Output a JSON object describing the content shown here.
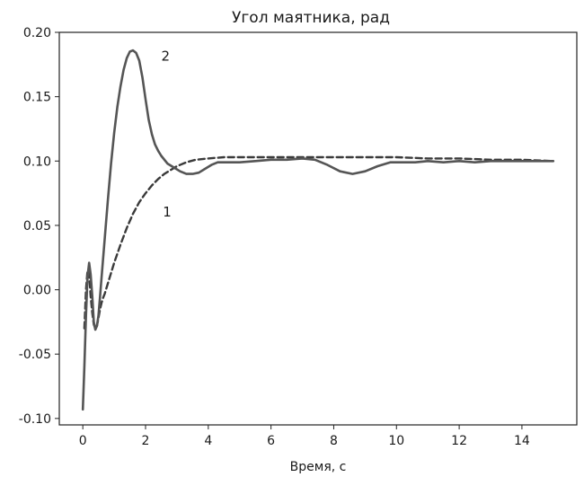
{
  "chart_data": {
    "type": "line",
    "title": "Угол маятника, рад",
    "xlabel": "Время, с",
    "ylabel": "",
    "xlim": [
      -0.75,
      15.75
    ],
    "ylim": [
      -0.105,
      0.2
    ],
    "xticks": [
      0,
      2,
      4,
      6,
      8,
      10,
      12,
      14
    ],
    "yticks": [
      -0.1,
      -0.05,
      0.0,
      0.05,
      0.1,
      0.15,
      0.2
    ],
    "xtick_labels": [
      "0",
      "2",
      "4",
      "6",
      "8",
      "10",
      "12",
      "14"
    ],
    "ytick_labels": [
      "-0.10",
      "-0.05",
      "0.00",
      "0.05",
      "0.10",
      "0.15",
      "0.20"
    ],
    "grid": false,
    "series": [
      {
        "name": "1",
        "style": "dashed",
        "color": "#3a3a3a",
        "x": [
          0.05,
          0.1,
          0.15,
          0.2,
          0.25,
          0.3,
          0.35,
          0.4,
          0.45,
          0.5,
          0.55,
          0.6,
          0.65,
          0.7,
          0.8,
          0.9,
          1.0,
          1.2,
          1.4,
          1.6,
          1.8,
          2.0,
          2.2,
          2.4,
          2.6,
          2.8,
          3.0,
          3.3,
          3.6,
          4.0,
          4.5,
          5.0,
          6.0,
          7.0,
          8.0,
          9.0,
          10.0,
          11.0,
          12.0,
          13.0,
          14.0,
          15.0
        ],
        "y": [
          -0.03,
          0.0,
          0.015,
          0.012,
          -0.005,
          -0.018,
          -0.027,
          -0.03,
          -0.028,
          -0.022,
          -0.015,
          -0.01,
          -0.006,
          -0.003,
          0.005,
          0.013,
          0.021,
          0.035,
          0.048,
          0.059,
          0.068,
          0.075,
          0.081,
          0.086,
          0.09,
          0.093,
          0.096,
          0.099,
          0.101,
          0.102,
          0.103,
          0.103,
          0.103,
          0.103,
          0.103,
          0.103,
          0.103,
          0.102,
          0.102,
          0.101,
          0.101,
          0.1
        ]
      },
      {
        "name": "2",
        "style": "solid",
        "color": "#555555",
        "x": [
          0.0,
          0.05,
          0.1,
          0.15,
          0.2,
          0.25,
          0.3,
          0.35,
          0.4,
          0.45,
          0.5,
          0.55,
          0.6,
          0.7,
          0.8,
          0.9,
          1.0,
          1.1,
          1.2,
          1.3,
          1.4,
          1.5,
          1.6,
          1.7,
          1.8,
          1.9,
          2.0,
          2.1,
          2.2,
          2.3,
          2.4,
          2.5,
          2.7,
          2.9,
          3.1,
          3.3,
          3.5,
          3.7,
          3.9,
          4.1,
          4.3,
          4.6,
          5.0,
          5.5,
          6.0,
          6.5,
          7.0,
          7.4,
          7.8,
          8.2,
          8.6,
          9.0,
          9.4,
          9.8,
          10.2,
          10.6,
          11.0,
          11.5,
          12.0,
          12.5,
          13.0,
          13.5,
          14.0,
          14.5,
          15.0
        ],
        "y": [
          -0.093,
          -0.06,
          -0.02,
          0.01,
          0.021,
          0.012,
          -0.005,
          -0.025,
          -0.031,
          -0.028,
          -0.02,
          -0.005,
          0.01,
          0.04,
          0.07,
          0.098,
          0.122,
          0.142,
          0.158,
          0.171,
          0.18,
          0.185,
          0.186,
          0.184,
          0.178,
          0.165,
          0.148,
          0.132,
          0.121,
          0.113,
          0.108,
          0.104,
          0.098,
          0.095,
          0.092,
          0.09,
          0.09,
          0.091,
          0.094,
          0.097,
          0.099,
          0.099,
          0.099,
          0.1,
          0.101,
          0.101,
          0.102,
          0.101,
          0.097,
          0.092,
          0.09,
          0.092,
          0.096,
          0.099,
          0.099,
          0.099,
          0.1,
          0.099,
          0.1,
          0.099,
          0.1,
          0.1,
          0.1,
          0.1,
          0.1
        ]
      }
    ],
    "annotations": [
      {
        "text": "2",
        "x": 2.5,
        "y": 0.178
      },
      {
        "text": "1",
        "x": 2.55,
        "y": 0.057
      }
    ]
  }
}
